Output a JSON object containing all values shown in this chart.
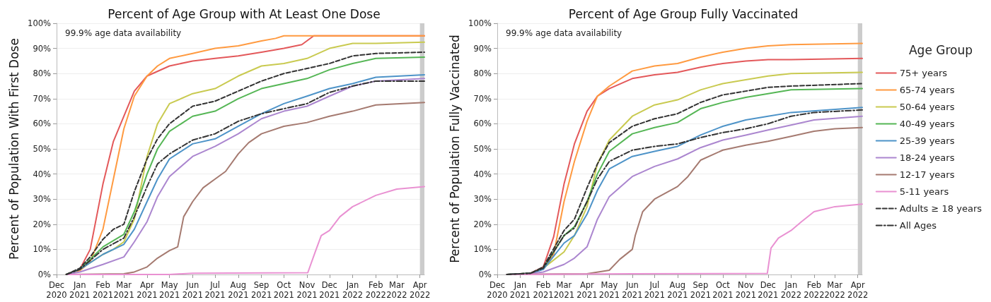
{
  "chart_data": [
    {
      "type": "line",
      "title": "Percent of Age Group with At Least One Dose",
      "ylabel": "Percent of Population With First Dose",
      "annotations": [
        "99.9% age data availability"
      ],
      "marker": "none",
      "grid": "y",
      "xlim": [
        "2020-12-01",
        "2022-04-07"
      ],
      "xticks": [
        {
          "value": "2020-12-01",
          "label": "Dec\n2020"
        },
        {
          "value": "2021-01-01",
          "label": "Jan\n2021"
        },
        {
          "value": "2021-02-01",
          "label": "Feb\n2021"
        },
        {
          "value": "2021-03-01",
          "label": "Mar\n2021"
        },
        {
          "value": "2021-04-01",
          "label": "Apr\n2021"
        },
        {
          "value": "2021-05-01",
          "label": "May\n2021"
        },
        {
          "value": "2021-06-01",
          "label": "Jun\n2021"
        },
        {
          "value": "2021-07-01",
          "label": "Jul\n2021"
        },
        {
          "value": "2021-08-01",
          "label": "Aug\n2021"
        },
        {
          "value": "2021-09-01",
          "label": "Sep\n2021"
        },
        {
          "value": "2021-10-01",
          "label": "Oct\n2021"
        },
        {
          "value": "2021-11-01",
          "label": "Nov\n2021"
        },
        {
          "value": "2021-12-01",
          "label": "Dec\n2021"
        },
        {
          "value": "2022-01-01",
          "label": "Jan\n2022"
        },
        {
          "value": "2022-02-01",
          "label": "Feb\n2022"
        },
        {
          "value": "2022-03-01",
          "label": "Mar\n2022"
        },
        {
          "value": "2022-04-01",
          "label": "Apr\n2022"
        }
      ],
      "ylim": [
        0,
        100
      ],
      "yticks": [
        {
          "value": 0,
          "label": "0%"
        },
        {
          "value": 10,
          "label": "10%"
        },
        {
          "value": 20,
          "label": "20%"
        },
        {
          "value": 30,
          "label": "30%"
        },
        {
          "value": 40,
          "label": "40%"
        },
        {
          "value": 50,
          "label": "50%"
        },
        {
          "value": 60,
          "label": "60%"
        },
        {
          "value": 70,
          "label": "70%"
        },
        {
          "value": 80,
          "label": "80%"
        },
        {
          "value": 90,
          "label": "90%"
        },
        {
          "value": 100,
          "label": "100%"
        }
      ],
      "bands": [
        {
          "axis": "x",
          "from": "2022-04-01",
          "to": "2022-04-07",
          "color": "#cccccc"
        }
      ],
      "series": [
        {
          "color": "#e3585a",
          "x": [
            "2020-12-14",
            "2021-01-01",
            "2021-01-15",
            "2021-02-01",
            "2021-02-15",
            "2021-03-01",
            "2021-03-15",
            "2021-04-01",
            "2021-05-01",
            "2021-06-01",
            "2021-07-01",
            "2021-08-01",
            "2021-09-01",
            "2021-10-01",
            "2021-10-25",
            "2021-11-10",
            "2022-04-07"
          ],
          "values": [
            0,
            2,
            10,
            36,
            53,
            63,
            73,
            79,
            83,
            85,
            86,
            87,
            88.5,
            90,
            91.5,
            95,
            95
          ]
        },
        {
          "color": "#ff9a40",
          "x": [
            "2020-12-14",
            "2021-01-01",
            "2021-01-15",
            "2021-02-01",
            "2021-02-15",
            "2021-03-01",
            "2021-03-15",
            "2021-04-01",
            "2021-04-15",
            "2021-05-01",
            "2021-06-01",
            "2021-07-01",
            "2021-08-01",
            "2021-09-01",
            "2021-09-20",
            "2021-10-01",
            "2022-04-07"
          ],
          "values": [
            0,
            1.5,
            5,
            18,
            38,
            58,
            71,
            79,
            83,
            86,
            88,
            90,
            91,
            93,
            94,
            95,
            95
          ]
        },
        {
          "color": "#c9ca50",
          "x": [
            "2020-12-14",
            "2021-01-01",
            "2021-02-01",
            "2021-02-15",
            "2021-03-01",
            "2021-03-15",
            "2021-04-01",
            "2021-04-15",
            "2021-05-01",
            "2021-06-01",
            "2021-07-01",
            "2021-08-01",
            "2021-09-01",
            "2021-10-01",
            "2021-11-01",
            "2021-12-01",
            "2022-01-01",
            "2022-02-01",
            "2022-04-07"
          ],
          "values": [
            0,
            2,
            8,
            10,
            13,
            22,
            47,
            60,
            68,
            72,
            74,
            79,
            83,
            84,
            86,
            90,
            92,
            92,
            92.5
          ]
        },
        {
          "color": "#55b655",
          "x": [
            "2020-12-14",
            "2021-01-01",
            "2021-02-01",
            "2021-03-01",
            "2021-03-15",
            "2021-04-01",
            "2021-04-15",
            "2021-05-01",
            "2021-06-01",
            "2021-07-01",
            "2021-08-01",
            "2021-09-01",
            "2021-10-01",
            "2021-11-01",
            "2021-12-01",
            "2022-01-01",
            "2022-02-01",
            "2022-04-07"
          ],
          "values": [
            0,
            2,
            11,
            16,
            25,
            40,
            50,
            57,
            63,
            65,
            70,
            74,
            76,
            78,
            81.5,
            84,
            86,
            86.5
          ]
        },
        {
          "color": "#4d93c8",
          "x": [
            "2020-12-14",
            "2021-01-01",
            "2021-02-01",
            "2021-03-01",
            "2021-03-15",
            "2021-04-01",
            "2021-04-15",
            "2021-05-01",
            "2021-06-01",
            "2021-07-01",
            "2021-08-01",
            "2021-09-01",
            "2021-10-01",
            "2021-11-01",
            "2021-12-01",
            "2022-01-01",
            "2022-02-01",
            "2022-04-07"
          ],
          "values": [
            0,
            2,
            8,
            12,
            18,
            29,
            38,
            46,
            52,
            54,
            59,
            64,
            68,
            71,
            74,
            76,
            78.5,
            79.5
          ]
        },
        {
          "color": "#ab86cf",
          "x": [
            "2020-12-14",
            "2021-01-01",
            "2021-02-01",
            "2021-03-01",
            "2021-03-15",
            "2021-04-01",
            "2021-04-15",
            "2021-05-01",
            "2021-06-01",
            "2021-07-01",
            "2021-08-01",
            "2021-09-01",
            "2021-10-01",
            "2021-11-01",
            "2021-12-01",
            "2022-01-01",
            "2022-02-01",
            "2022-04-07"
          ],
          "values": [
            0,
            1,
            4,
            7,
            13,
            21,
            31,
            39,
            47,
            51,
            56,
            62,
            65,
            67,
            71,
            75,
            77,
            78
          ]
        },
        {
          "color": "#a57a70",
          "x": [
            "2020-12-14",
            "2021-03-01",
            "2021-03-15",
            "2021-04-01",
            "2021-04-15",
            "2021-05-01",
            "2021-05-12",
            "2021-05-20",
            "2021-06-01",
            "2021-06-15",
            "2021-07-01",
            "2021-07-15",
            "2021-08-01",
            "2021-08-15",
            "2021-09-01",
            "2021-10-01",
            "2021-11-01",
            "2021-12-01",
            "2022-01-01",
            "2022-02-01",
            "2022-04-07"
          ],
          "values": [
            0,
            0.3,
            1,
            3,
            6.5,
            9.5,
            11,
            23,
            29,
            34.5,
            38,
            41,
            48,
            52.5,
            56,
            59,
            60.5,
            63,
            65,
            67.5,
            68.5
          ]
        },
        {
          "color": "#e991d2",
          "x": [
            "2020-12-14",
            "2021-05-01",
            "2021-06-01",
            "2021-11-02",
            "2021-11-12",
            "2021-11-20",
            "2021-12-01",
            "2021-12-15",
            "2022-01-01",
            "2022-02-01",
            "2022-03-01",
            "2022-04-07"
          ],
          "values": [
            0,
            0,
            0.5,
            0.7,
            9,
            15.5,
            17.5,
            23,
            27,
            31.5,
            34,
            35
          ]
        },
        {
          "color": "#333333",
          "line_style": "dashed",
          "x": [
            "2020-12-14",
            "2021-01-01",
            "2021-01-15",
            "2021-02-01",
            "2021-02-15",
            "2021-03-01",
            "2021-03-15",
            "2021-04-01",
            "2021-04-15",
            "2021-05-01",
            "2021-06-01",
            "2021-07-01",
            "2021-08-01",
            "2021-09-01",
            "2021-10-01",
            "2021-11-01",
            "2021-12-01",
            "2022-01-01",
            "2022-02-01",
            "2022-04-07"
          ],
          "values": [
            0,
            2.5,
            7,
            14,
            18,
            20,
            33,
            46,
            54,
            60,
            67,
            69,
            73,
            77,
            80,
            82,
            84,
            87,
            88,
            88.5
          ]
        },
        {
          "color": "#333333",
          "line_style": "dashdot",
          "x": [
            "2020-12-14",
            "2021-01-01",
            "2021-02-01",
            "2021-03-01",
            "2021-03-15",
            "2021-04-01",
            "2021-04-15",
            "2021-05-01",
            "2021-06-01",
            "2021-07-01",
            "2021-08-01",
            "2021-09-01",
            "2021-10-01",
            "2021-11-01",
            "2021-12-01",
            "2022-01-01",
            "2022-02-01",
            "2022-04-07"
          ],
          "values": [
            0,
            2,
            10,
            14.5,
            23,
            35,
            44,
            48,
            53.5,
            56,
            61,
            64,
            66,
            68,
            72.5,
            75,
            77,
            77
          ]
        }
      ]
    },
    {
      "type": "line",
      "title": "Percent of Age Group Fully Vaccinated",
      "ylabel": "Percent of Population Fully Vaccinated",
      "annotations": [
        "99.9% age data availability"
      ],
      "marker": "none",
      "grid": "y",
      "legend": "right",
      "legend_title": "Age Group",
      "xlim": [
        "2020-12-01",
        "2022-04-07"
      ],
      "xticks": [
        {
          "value": "2020-12-01",
          "label": "Dec\n2020"
        },
        {
          "value": "2021-01-01",
          "label": "Jan\n2021"
        },
        {
          "value": "2021-02-01",
          "label": "Feb\n2021"
        },
        {
          "value": "2021-03-01",
          "label": "Mar\n2021"
        },
        {
          "value": "2021-04-01",
          "label": "Apr\n2021"
        },
        {
          "value": "2021-05-01",
          "label": "May\n2021"
        },
        {
          "value": "2021-06-01",
          "label": "Jun\n2021"
        },
        {
          "value": "2021-07-01",
          "label": "Jul\n2021"
        },
        {
          "value": "2021-08-01",
          "label": "Aug\n2021"
        },
        {
          "value": "2021-09-01",
          "label": "Sep\n2021"
        },
        {
          "value": "2021-10-01",
          "label": "Oct\n2021"
        },
        {
          "value": "2021-11-01",
          "label": "Nov\n2021"
        },
        {
          "value": "2021-12-01",
          "label": "Dec\n2021"
        },
        {
          "value": "2022-01-01",
          "label": "Jan\n2022"
        },
        {
          "value": "2022-02-01",
          "label": "Feb\n2022"
        },
        {
          "value": "2022-03-01",
          "label": "Mar\n2022"
        },
        {
          "value": "2022-04-01",
          "label": "Apr\n2022"
        }
      ],
      "ylim": [
        0,
        100
      ],
      "yticks": [
        {
          "value": 0,
          "label": "0%"
        },
        {
          "value": 10,
          "label": "10%"
        },
        {
          "value": 20,
          "label": "20%"
        },
        {
          "value": 30,
          "label": "30%"
        },
        {
          "value": 40,
          "label": "40%"
        },
        {
          "value": 50,
          "label": "50%"
        },
        {
          "value": 60,
          "label": "60%"
        },
        {
          "value": 70,
          "label": "70%"
        },
        {
          "value": 80,
          "label": "80%"
        },
        {
          "value": 90,
          "label": "90%"
        },
        {
          "value": 100,
          "label": "100%"
        }
      ],
      "bands": [
        {
          "axis": "x",
          "from": "2022-04-01",
          "to": "2022-04-07",
          "color": "#cccccc"
        }
      ],
      "series": [
        {
          "name": "75+ years",
          "color": "#e3585a",
          "x": [
            "2020-12-14",
            "2021-01-15",
            "2021-02-01",
            "2021-02-15",
            "2021-03-01",
            "2021-03-15",
            "2021-04-01",
            "2021-04-15",
            "2021-05-01",
            "2021-06-01",
            "2021-07-01",
            "2021-08-01",
            "2021-09-01",
            "2021-10-01",
            "2021-11-01",
            "2021-12-01",
            "2022-01-01",
            "2022-04-07"
          ],
          "values": [
            0,
            0.5,
            3,
            15,
            36,
            52,
            65,
            71,
            74,
            78,
            79.5,
            80.5,
            82.5,
            84,
            85,
            85.5,
            85.5,
            86
          ]
        },
        {
          "name": "65-74 years",
          "color": "#ff9a40",
          "x": [
            "2021-02-01",
            "2021-02-15",
            "2021-03-01",
            "2021-03-15",
            "2021-04-01",
            "2021-04-15",
            "2021-05-01",
            "2021-06-01",
            "2021-07-01",
            "2021-08-01",
            "2021-09-01",
            "2021-10-01",
            "2021-11-01",
            "2021-12-01",
            "2022-01-01",
            "2022-04-07"
          ],
          "values": [
            2,
            8,
            29,
            45,
            61,
            71,
            75,
            81,
            83,
            84,
            86.5,
            88.5,
            90,
            91,
            91.5,
            92
          ]
        },
        {
          "name": "50-64 years",
          "color": "#c9ca50",
          "x": [
            "2020-12-14",
            "2021-01-15",
            "2021-02-01",
            "2021-03-01",
            "2021-03-15",
            "2021-04-01",
            "2021-04-15",
            "2021-05-01",
            "2021-06-01",
            "2021-07-01",
            "2021-08-01",
            "2021-09-01",
            "2021-10-01",
            "2021-11-01",
            "2021-12-01",
            "2022-01-01",
            "2022-04-07"
          ],
          "values": [
            0,
            0.5,
            2.5,
            9,
            15.5,
            27,
            44,
            53.5,
            63,
            67.5,
            69.5,
            73.5,
            76,
            77.5,
            79,
            80,
            80.5
          ]
        },
        {
          "name": "40-49 years",
          "color": "#55b655",
          "x": [
            "2020-12-14",
            "2021-01-15",
            "2021-02-01",
            "2021-03-01",
            "2021-03-15",
            "2021-04-01",
            "2021-04-15",
            "2021-05-01",
            "2021-06-01",
            "2021-07-01",
            "2021-08-01",
            "2021-09-01",
            "2021-10-01",
            "2021-11-01",
            "2021-12-01",
            "2022-01-01",
            "2022-04-07"
          ],
          "values": [
            0,
            0.5,
            2.5,
            15.5,
            19,
            29,
            40,
            49,
            56,
            58.5,
            60.5,
            66,
            68.5,
            70.5,
            72,
            73.5,
            74
          ]
        },
        {
          "name": "25-39 years",
          "color": "#4d93c8",
          "x": [
            "2020-12-14",
            "2021-01-15",
            "2021-02-01",
            "2021-03-01",
            "2021-03-15",
            "2021-04-01",
            "2021-04-15",
            "2021-05-01",
            "2021-06-01",
            "2021-07-01",
            "2021-08-01",
            "2021-09-01",
            "2021-10-01",
            "2021-11-01",
            "2021-12-01",
            "2022-01-01",
            "2022-04-07"
          ],
          "values": [
            0,
            0.5,
            2,
            12.5,
            15.5,
            24,
            33.5,
            42,
            47,
            49,
            51,
            55.5,
            59,
            61.5,
            63,
            64.5,
            66.5
          ]
        },
        {
          "name": "18-24 years",
          "color": "#ab86cf",
          "x": [
            "2020-12-14",
            "2021-01-15",
            "2021-02-01",
            "2021-03-01",
            "2021-03-15",
            "2021-04-01",
            "2021-04-15",
            "2021-05-01",
            "2021-06-01",
            "2021-07-01",
            "2021-08-01",
            "2021-09-01",
            "2021-10-01",
            "2021-11-01",
            "2021-12-01",
            "2022-01-01",
            "2022-02-01",
            "2022-04-07"
          ],
          "values": [
            0,
            0.3,
            1,
            4,
            6.5,
            11,
            22,
            31,
            39,
            43,
            46,
            50.5,
            53.5,
            55.5,
            57.5,
            59.5,
            61.5,
            63
          ]
        },
        {
          "name": "12-17 years",
          "color": "#a57a70",
          "x": [
            "2020-12-14",
            "2021-04-01",
            "2021-05-01",
            "2021-05-15",
            "2021-06-01",
            "2021-06-05",
            "2021-06-15",
            "2021-07-01",
            "2021-08-01",
            "2021-08-15",
            "2021-09-01",
            "2021-10-01",
            "2021-11-01",
            "2021-12-01",
            "2022-01-01",
            "2022-02-01",
            "2022-03-01",
            "2022-04-07"
          ],
          "values": [
            0,
            0.3,
            1.7,
            6,
            10,
            15.5,
            25,
            30,
            35,
            39,
            45.5,
            49.5,
            51.5,
            53,
            55,
            57,
            58,
            58.5
          ]
        },
        {
          "name": "5-11 years",
          "color": "#e991d2",
          "x": [
            "2020-12-14",
            "2021-06-01",
            "2021-11-30",
            "2021-12-05",
            "2021-12-15",
            "2022-01-01",
            "2022-01-15",
            "2022-02-01",
            "2022-03-01",
            "2022-04-07"
          ],
          "values": [
            0,
            0.3,
            0.4,
            10.5,
            14.5,
            17.5,
            21,
            25,
            27,
            28
          ]
        },
        {
          "name": "Adults ≥ 18 years",
          "color": "#333333",
          "line_style": "dashed",
          "x": [
            "2020-12-14",
            "2021-01-15",
            "2021-02-01",
            "2021-03-01",
            "2021-03-15",
            "2021-04-01",
            "2021-04-15",
            "2021-05-01",
            "2021-06-01",
            "2021-07-01",
            "2021-08-01",
            "2021-09-01",
            "2021-10-01",
            "2021-11-01",
            "2021-12-01",
            "2022-01-01",
            "2022-04-07"
          ],
          "values": [
            0,
            0.5,
            3,
            17.5,
            22,
            34.5,
            44,
            52.5,
            59,
            62,
            64,
            68.5,
            71.5,
            73,
            74.5,
            75,
            76
          ]
        },
        {
          "name": "All Ages",
          "color": "#333333",
          "line_style": "dashdot",
          "x": [
            "2020-12-14",
            "2021-01-15",
            "2021-02-01",
            "2021-03-01",
            "2021-03-15",
            "2021-04-01",
            "2021-04-15",
            "2021-05-01",
            "2021-06-01",
            "2021-07-01",
            "2021-08-01",
            "2021-09-01",
            "2021-10-01",
            "2021-11-01",
            "2021-12-01",
            "2022-01-01",
            "2022-02-01",
            "2022-04-07"
          ],
          "values": [
            0,
            0.5,
            2.5,
            15.5,
            18.5,
            29,
            38,
            45,
            49.5,
            51,
            52,
            54.5,
            56.5,
            58,
            60,
            63,
            64.5,
            65.5
          ]
        }
      ]
    }
  ]
}
